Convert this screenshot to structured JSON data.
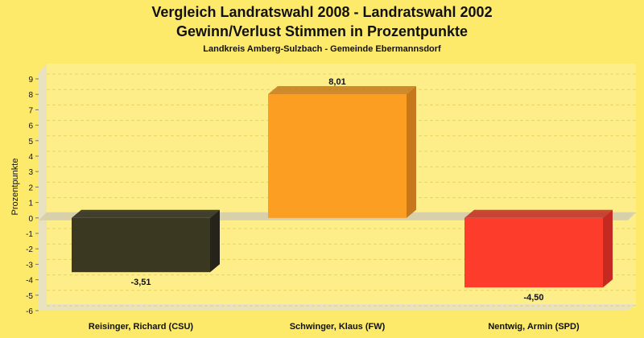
{
  "colors": {
    "background": "#fde96a",
    "plot_background": "#fdee8a",
    "grid": "#e8d460",
    "zero_band": "#d8d0a8",
    "axis_3d": "#e8e2c0"
  },
  "chart_data": {
    "type": "bar",
    "title": "Vergleich Landratswahl 2008 - Landratswahl 2002",
    "subtitle": "Gewinn/Verlust Stimmen in Prozentpunkte",
    "caption": "Landkreis Amberg-Sulzbach - Gemeinde Ebermannsdorf",
    "xlabel": "",
    "ylabel": "Prozentpunkte",
    "ylim": [
      -6,
      9
    ],
    "yticks": [
      9,
      8,
      7,
      6,
      5,
      4,
      3,
      2,
      1,
      0,
      -1,
      -2,
      -3,
      -4,
      -5,
      -6
    ],
    "grid": true,
    "categories": [
      "Reisinger, Richard (CSU)",
      "Schwinger, Klaus (FW)",
      "Nentwig, Armin (SPD)"
    ],
    "values": [
      -3.51,
      8.01,
      -4.5
    ],
    "value_labels": [
      "-3,51",
      "8,01",
      "-4,50"
    ],
    "bar_colors": [
      "#3b3822",
      "#fb9e21",
      "#fe3c2c"
    ],
    "bar_side_colors": [
      "#26241a",
      "#c6781a",
      "#c42a20"
    ]
  }
}
